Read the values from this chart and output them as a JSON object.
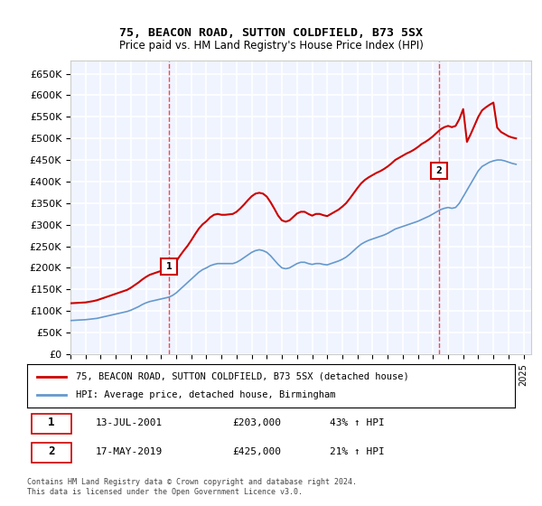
{
  "title": "75, BEACON ROAD, SUTTON COLDFIELD, B73 5SX",
  "subtitle": "Price paid vs. HM Land Registry's House Price Index (HPI)",
  "ylabel_ticks": [
    "£0",
    "£50K",
    "£100K",
    "£150K",
    "£200K",
    "£250K",
    "£300K",
    "£350K",
    "£400K",
    "£450K",
    "£500K",
    "£550K",
    "£600K",
    "£650K"
  ],
  "ylim": [
    0,
    680000
  ],
  "xlim_start": 1995.0,
  "xlim_end": 2025.5,
  "bg_color": "#f0f4ff",
  "grid_color": "#ffffff",
  "sale1_x": 2001.54,
  "sale1_y": 203000,
  "sale1_label": "1",
  "sale1_date": "13-JUL-2001",
  "sale1_price": "£203,000",
  "sale1_hpi": "43% ↑ HPI",
  "sale2_x": 2019.38,
  "sale2_y": 425000,
  "sale2_label": "2",
  "sale2_date": "17-MAY-2019",
  "sale2_price": "£425,000",
  "sale2_hpi": "21% ↑ HPI",
  "vline_color": "#ff4444",
  "vline_style": "--",
  "property_color": "#cc0000",
  "hpi_color": "#6699cc",
  "legend_label_property": "75, BEACON ROAD, SUTTON COLDFIELD, B73 5SX (detached house)",
  "legend_label_hpi": "HPI: Average price, detached house, Birmingham",
  "footnote": "Contains HM Land Registry data © Crown copyright and database right 2024.\nThis data is licensed under the Open Government Licence v3.0.",
  "hpi_data": {
    "years": [
      1995.0,
      1995.25,
      1995.5,
      1995.75,
      1996.0,
      1996.25,
      1996.5,
      1996.75,
      1997.0,
      1997.25,
      1997.5,
      1997.75,
      1998.0,
      1998.25,
      1998.5,
      1998.75,
      1999.0,
      1999.25,
      1999.5,
      1999.75,
      2000.0,
      2000.25,
      2000.5,
      2000.75,
      2001.0,
      2001.25,
      2001.5,
      2001.75,
      2002.0,
      2002.25,
      2002.5,
      2002.75,
      2003.0,
      2003.25,
      2003.5,
      2003.75,
      2004.0,
      2004.25,
      2004.5,
      2004.75,
      2005.0,
      2005.25,
      2005.5,
      2005.75,
      2006.0,
      2006.25,
      2006.5,
      2006.75,
      2007.0,
      2007.25,
      2007.5,
      2007.75,
      2008.0,
      2008.25,
      2008.5,
      2008.75,
      2009.0,
      2009.25,
      2009.5,
      2009.75,
      2010.0,
      2010.25,
      2010.5,
      2010.75,
      2011.0,
      2011.25,
      2011.5,
      2011.75,
      2012.0,
      2012.25,
      2012.5,
      2012.75,
      2013.0,
      2013.25,
      2013.5,
      2013.75,
      2014.0,
      2014.25,
      2014.5,
      2014.75,
      2015.0,
      2015.25,
      2015.5,
      2015.75,
      2016.0,
      2016.25,
      2016.5,
      2016.75,
      2017.0,
      2017.25,
      2017.5,
      2017.75,
      2018.0,
      2018.25,
      2018.5,
      2018.75,
      2019.0,
      2019.25,
      2019.5,
      2019.75,
      2020.0,
      2020.25,
      2020.5,
      2020.75,
      2021.0,
      2021.25,
      2021.5,
      2021.75,
      2022.0,
      2022.25,
      2022.5,
      2022.75,
      2023.0,
      2023.25,
      2023.5,
      2023.75,
      2024.0,
      2024.25,
      2024.5
    ],
    "values": [
      78000,
      78500,
      79000,
      79500,
      80000,
      81000,
      82000,
      83000,
      85000,
      87000,
      89000,
      91000,
      93000,
      95000,
      97000,
      99000,
      102000,
      106000,
      110000,
      115000,
      119000,
      122000,
      124000,
      126000,
      128000,
      130000,
      132000,
      136000,
      142000,
      150000,
      158000,
      166000,
      174000,
      182000,
      190000,
      196000,
      200000,
      205000,
      208000,
      210000,
      210000,
      210000,
      210000,
      210000,
      213000,
      218000,
      224000,
      230000,
      236000,
      240000,
      242000,
      240000,
      236000,
      228000,
      218000,
      208000,
      200000,
      198000,
      200000,
      205000,
      210000,
      213000,
      213000,
      210000,
      208000,
      210000,
      210000,
      208000,
      207000,
      210000,
      213000,
      216000,
      220000,
      225000,
      232000,
      240000,
      248000,
      255000,
      260000,
      264000,
      267000,
      270000,
      273000,
      276000,
      280000,
      285000,
      290000,
      293000,
      296000,
      299000,
      302000,
      305000,
      308000,
      312000,
      316000,
      320000,
      325000,
      330000,
      335000,
      338000,
      340000,
      338000,
      340000,
      350000,
      365000,
      380000,
      395000,
      410000,
      425000,
      435000,
      440000,
      445000,
      448000,
      450000,
      450000,
      448000,
      445000,
      442000,
      440000
    ],
    "indexed_values": [
      78000,
      78500,
      79000,
      79500,
      80000,
      81000,
      82000,
      83000,
      85000,
      87000,
      89000,
      91000,
      93000,
      95000,
      97000,
      99000,
      102000,
      106000,
      110000,
      115000,
      119000,
      122000,
      124000,
      126000,
      128000,
      130000,
      132000,
      136000,
      142000,
      150000,
      158000,
      166000,
      174000,
      182000,
      190000,
      196000,
      200000,
      205000,
      208000,
      210000,
      210000,
      210000,
      210000,
      210000,
      213000,
      218000,
      224000,
      230000,
      236000,
      240000,
      242000,
      240000,
      236000,
      228000,
      218000,
      208000,
      200000,
      198000,
      200000,
      205000,
      210000,
      213000,
      213000,
      210000,
      208000,
      210000,
      210000,
      208000,
      207000,
      210000,
      213000,
      216000,
      220000,
      225000,
      232000,
      240000,
      248000,
      255000,
      260000,
      264000,
      267000,
      270000,
      273000,
      276000,
      280000,
      285000,
      290000,
      293000,
      296000,
      299000,
      302000,
      305000,
      308000,
      312000,
      316000,
      320000,
      325000,
      330000,
      335000,
      338000,
      340000,
      338000,
      340000,
      350000,
      365000,
      380000,
      395000,
      410000,
      425000,
      435000,
      440000,
      445000,
      448000,
      450000,
      450000,
      448000,
      445000,
      442000,
      440000
    ]
  },
  "property_data": {
    "years": [
      1995.0,
      1995.25,
      1995.5,
      1995.75,
      1996.0,
      1996.25,
      1996.5,
      1996.75,
      1997.0,
      1997.25,
      1997.5,
      1997.75,
      1998.0,
      1998.25,
      1998.5,
      1998.75,
      1999.0,
      1999.25,
      1999.5,
      1999.75,
      2000.0,
      2000.25,
      2000.5,
      2000.75,
      2001.0,
      2001.25,
      2001.5,
      2001.75,
      2002.0,
      2002.25,
      2002.5,
      2002.75,
      2003.0,
      2003.25,
      2003.5,
      2003.75,
      2004.0,
      2004.25,
      2004.5,
      2004.75,
      2005.0,
      2005.25,
      2005.5,
      2005.75,
      2006.0,
      2006.25,
      2006.5,
      2006.75,
      2007.0,
      2007.25,
      2007.5,
      2007.75,
      2008.0,
      2008.25,
      2008.5,
      2008.75,
      2009.0,
      2009.25,
      2009.5,
      2009.75,
      2010.0,
      2010.25,
      2010.5,
      2010.75,
      2011.0,
      2011.25,
      2011.5,
      2011.75,
      2012.0,
      2012.25,
      2012.5,
      2012.75,
      2013.0,
      2013.25,
      2013.5,
      2013.75,
      2014.0,
      2014.25,
      2014.5,
      2014.75,
      2015.0,
      2015.25,
      2015.5,
      2015.75,
      2016.0,
      2016.25,
      2016.5,
      2016.75,
      2017.0,
      2017.25,
      2017.5,
      2017.75,
      2018.0,
      2018.25,
      2018.5,
      2018.75,
      2019.0,
      2019.25,
      2019.5,
      2019.75,
      2020.0,
      2020.25,
      2020.5,
      2020.75,
      2021.0,
      2021.25,
      2021.5,
      2021.75,
      2022.0,
      2022.25,
      2022.5,
      2022.75,
      2023.0,
      2023.25,
      2023.5,
      2023.75,
      2024.0,
      2024.25,
      2024.5
    ],
    "values": [
      118000,
      118500,
      119000,
      119500,
      120000,
      121500,
      123000,
      125000,
      128000,
      131000,
      134000,
      137000,
      140000,
      143000,
      146000,
      149000,
      154000,
      160000,
      166000,
      173000,
      179000,
      184000,
      187000,
      190000,
      193000,
      196000,
      200000,
      206000,
      215000,
      228000,
      240000,
      251000,
      264000,
      278000,
      291000,
      301000,
      308000,
      317000,
      323000,
      325000,
      323000,
      323000,
      324000,
      325000,
      330000,
      338000,
      347000,
      357000,
      366000,
      372000,
      374000,
      372000,
      365000,
      352000,
      337000,
      321000,
      310000,
      307000,
      310000,
      318000,
      326000,
      330000,
      330000,
      325000,
      321000,
      325000,
      325000,
      322000,
      320000,
      325000,
      330000,
      335000,
      342000,
      350000,
      361000,
      373000,
      385000,
      396000,
      404000,
      410000,
      415000,
      420000,
      424000,
      429000,
      435000,
      442000,
      450000,
      455000,
      460000,
      465000,
      469000,
      474000,
      480000,
      487000,
      492000,
      498000,
      505000,
      513000,
      521000,
      526000,
      529000,
      526000,
      529000,
      545000,
      568000,
      492000,
      510000,
      530000,
      550000,
      565000,
      572000,
      578000,
      583000,
      525000,
      515000,
      510000,
      505000,
      502000,
      500000
    ]
  }
}
